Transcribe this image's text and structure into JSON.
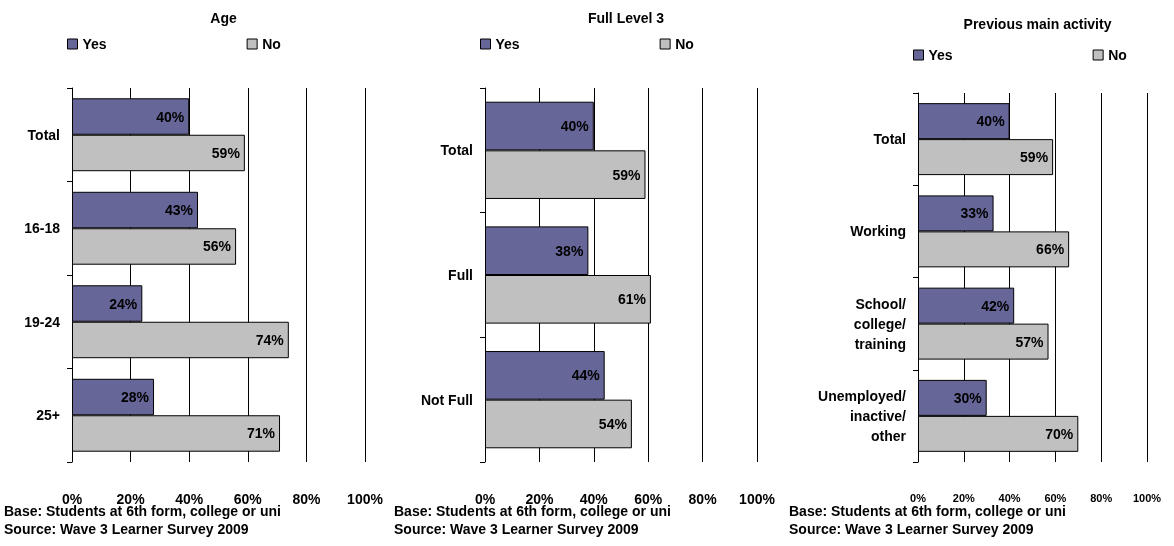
{
  "chart_data": [
    {
      "type": "bar",
      "orientation": "horizontal",
      "title": "Age",
      "categories": [
        "Total",
        "16-18",
        "19-24",
        "25+"
      ],
      "series": [
        {
          "name": "Yes",
          "color": "#666699",
          "values": [
            40,
            43,
            24,
            28
          ],
          "value_labels": [
            "40%",
            "43%",
            "24%",
            "28%"
          ]
        },
        {
          "name": "No",
          "color": "#c0c0c0",
          "values": [
            59,
            56,
            74,
            71
          ],
          "value_labels": [
            "59%",
            "56%",
            "74%",
            "71%"
          ]
        }
      ],
      "xlim": [
        0,
        100
      ],
      "xticks": [
        {
          "value": 0,
          "label": "0%"
        },
        {
          "value": 20,
          "label": "20%"
        },
        {
          "value": 40,
          "label": "40%"
        },
        {
          "value": 60,
          "label": "60%"
        },
        {
          "value": 80,
          "label": "80%"
        },
        {
          "value": 100,
          "label": "100%"
        }
      ],
      "grid": "x",
      "legend": "top",
      "annotations": [
        "Base: Students at 6th form, college or uni",
        "Source: Wave 3 Learner Survey 2009"
      ]
    },
    {
      "type": "bar",
      "orientation": "horizontal",
      "title": "Full Level 3",
      "categories": [
        "Total",
        "Full",
        "Not Full"
      ],
      "series": [
        {
          "name": "Yes",
          "color": "#666699",
          "values": [
            40,
            38,
            44
          ],
          "value_labels": [
            "40%",
            "38%",
            "44%"
          ]
        },
        {
          "name": "No",
          "color": "#c0c0c0",
          "values": [
            59,
            61,
            54
          ],
          "value_labels": [
            "59%",
            "61%",
            "54%"
          ]
        }
      ],
      "xlim": [
        0,
        100
      ],
      "xticks": [
        {
          "value": 0,
          "label": "0%"
        },
        {
          "value": 20,
          "label": "20%"
        },
        {
          "value": 40,
          "label": "40%"
        },
        {
          "value": 60,
          "label": "60%"
        },
        {
          "value": 80,
          "label": "80%"
        },
        {
          "value": 100,
          "label": "100%"
        }
      ],
      "grid": "x",
      "legend": "top",
      "annotations": [
        "Base: Students at 6th form, college or uni",
        "Source: Wave 3 Learner Survey 2009"
      ]
    },
    {
      "type": "bar",
      "orientation": "horizontal",
      "title": "Previous main activity",
      "categories": [
        "Total",
        "Working",
        "School/\ncollege/\ntraining",
        "Unemployed/\ninactive/\nother"
      ],
      "series": [
        {
          "name": "Yes",
          "color": "#666699",
          "values": [
            40,
            33,
            42,
            30
          ],
          "value_labels": [
            "40%",
            "33%",
            "42%",
            "30%"
          ]
        },
        {
          "name": "No",
          "color": "#c0c0c0",
          "values": [
            59,
            66,
            57,
            70
          ],
          "value_labels": [
            "59%",
            "66%",
            "57%",
            "70%"
          ]
        }
      ],
      "xlim": [
        0,
        100
      ],
      "xticks": [
        {
          "value": 0,
          "label": "0%"
        },
        {
          "value": 20,
          "label": "20%"
        },
        {
          "value": 40,
          "label": "40%"
        },
        {
          "value": 60,
          "label": "60%"
        },
        {
          "value": 80,
          "label": "80%"
        },
        {
          "value": 100,
          "label": "100%"
        }
      ],
      "grid": "x",
      "legend": "top",
      "annotations": [
        "Base: Students at 6th form, college or uni",
        "Source: Wave 3 Learner Survey 2009"
      ]
    }
  ]
}
